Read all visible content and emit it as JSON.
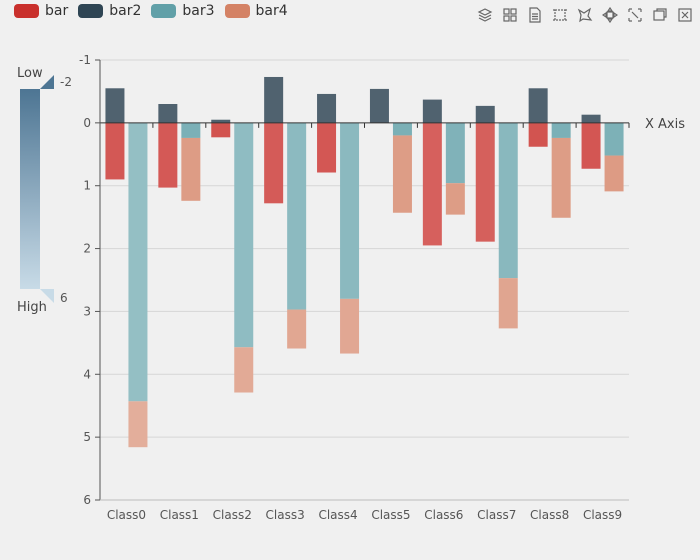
{
  "legend": [
    {
      "name": "bar",
      "color": "#c9302c"
    },
    {
      "name": "bar2",
      "color": "#2f4554"
    },
    {
      "name": "bar3",
      "color": "#61a0a8"
    },
    {
      "name": "bar4",
      "color": "#d48265"
    }
  ],
  "toolbox": [
    "stack-icon",
    "tiled-icon",
    "data-view-icon",
    "rect-select-icon",
    "lasso-select-icon",
    "keep-selection-icon",
    "clear-selection-icon",
    "restore-icon",
    "close-icon"
  ],
  "visual_map": {
    "low_label": "Low",
    "high_label": "High",
    "min": -2,
    "max": 6,
    "min_text": "-2",
    "max_text": "6"
  },
  "chart_data": {
    "type": "bar",
    "xlabel": "X Axis",
    "ylabel": "",
    "y_inverse": true,
    "ylim": [
      -1,
      6
    ],
    "yticks": [
      "-1",
      "0",
      "1",
      "2",
      "3",
      "4",
      "5",
      "6"
    ],
    "categories": [
      "Class0",
      "Class1",
      "Class2",
      "Class3",
      "Class4",
      "Class5",
      "Class6",
      "Class7",
      "Class8",
      "Class9"
    ],
    "stacks": [
      {
        "stack": "one",
        "series": [
          {
            "name": "bar2",
            "values": [
              -0.55,
              -0.3,
              -0.05,
              -0.73,
              -0.46,
              -0.54,
              -0.37,
              -0.27,
              -0.55,
              -0.13
            ]
          },
          {
            "name": "bar",
            "values": [
              0.9,
              1.03,
              0.23,
              1.28,
              0.79,
              0.0,
              1.95,
              1.89,
              0.38,
              0.73
            ]
          }
        ]
      },
      {
        "stack": "two",
        "series": [
          {
            "name": "bar3",
            "values": [
              4.43,
              0.24,
              3.57,
              2.97,
              2.8,
              0.2,
              0.96,
              2.47,
              0.24,
              0.52
            ]
          },
          {
            "name": "bar4",
            "values": [
              0.73,
              1.0,
              0.72,
              0.62,
              0.87,
              1.23,
              0.5,
              0.8,
              1.27,
              0.57
            ]
          }
        ]
      }
    ]
  }
}
